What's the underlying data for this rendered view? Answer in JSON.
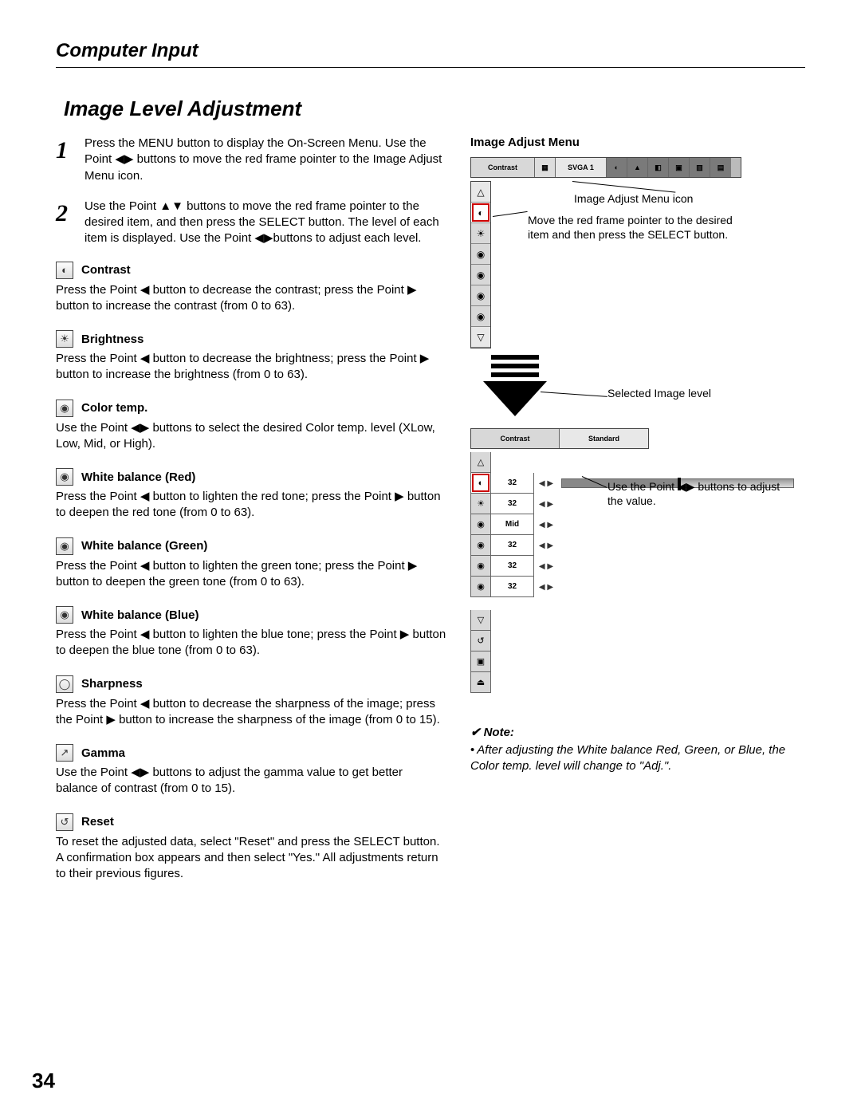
{
  "page": {
    "chapter": "Computer Input",
    "section": "Image Level Adjustment",
    "number": "34"
  },
  "steps": [
    {
      "num": "1",
      "text": "Press the MENU button to display the On-Screen Menu.  Use the Point ◀▶ buttons to move the red frame pointer to the Image Adjust Menu icon."
    },
    {
      "num": "2",
      "text": "Use the Point ▲▼ buttons to move the red frame pointer to the desired item, and then press the SELECT button.  The level of each item is displayed.  Use the Point ◀▶buttons to adjust each level."
    }
  ],
  "items": [
    {
      "icon": "◐",
      "title": "Contrast",
      "body": "Press the Point ◀ button to decrease the contrast; press the Point ▶ button to increase the contrast (from 0 to 63)."
    },
    {
      "icon": "☀",
      "title": "Brightness",
      "body": "Press the Point ◀ button to decrease the brightness; press the Point ▶ button to increase the brightness (from 0 to 63)."
    },
    {
      "icon": "◉",
      "title": "Color temp.",
      "body": "Use the Point ◀▶ buttons to select the desired Color temp. level (XLow, Low, Mid, or High)."
    },
    {
      "icon": "◉",
      "title": "White balance (Red)",
      "body": "Press the Point ◀ button to lighten the red tone; press the Point ▶ button to deepen the red tone (from 0 to 63)."
    },
    {
      "icon": "◉",
      "title": "White balance (Green)",
      "body": "Press the Point ◀ button to lighten the green tone; press the Point ▶ button to deepen the green tone (from 0 to 63)."
    },
    {
      "icon": "◉",
      "title": "White balance (Blue)",
      "body": "Press the Point ◀ button to lighten the blue tone; press the Point ▶ button to deepen the blue tone (from 0 to 63)."
    },
    {
      "icon": "◯",
      "title": "Sharpness",
      "body": "Press the Point ◀ button to decrease the sharpness of the image; press the Point ▶ button to increase the sharpness of the image (from 0 to 15)."
    },
    {
      "icon": "↗",
      "title": "Gamma",
      "body": "Use the Point ◀▶ buttons to adjust the gamma value to get better balance of contrast (from 0 to 15)."
    },
    {
      "icon": "↺",
      "title": "Reset",
      "body": "To reset the adjusted data, select \"Reset\" and press the SELECT button. A confirmation box appears and then select \"Yes.\" All adjustments return to their previous figures."
    }
  ],
  "right": {
    "heading": "Image Adjust Menu",
    "menuBarLabel": "Contrast",
    "menuBarMode": "SVGA 1",
    "annot_icon": "Image Adjust Menu icon",
    "annot_move": "Move the red frame pointer to the desired item and then press the SELECT button.",
    "selected_label": "Selected Image level",
    "panel2Label": "Contrast",
    "panel2Mode": "Standard",
    "rows": [
      {
        "icon": "◐",
        "val": "32",
        "bar": true
      },
      {
        "icon": "☀",
        "val": "32"
      },
      {
        "icon": "◉",
        "val": "Mid"
      },
      {
        "icon": "◉",
        "val": "32"
      },
      {
        "icon": "◉",
        "val": "32"
      },
      {
        "icon": "◉",
        "val": "32"
      }
    ],
    "annot_adjust": "Use the Point ◀▶ buttons to adjust the value."
  },
  "note": {
    "title": "Note:",
    "body": "After adjusting the White balance Red, Green, or Blue, the Color temp. level will change to \"Adj.\"."
  }
}
